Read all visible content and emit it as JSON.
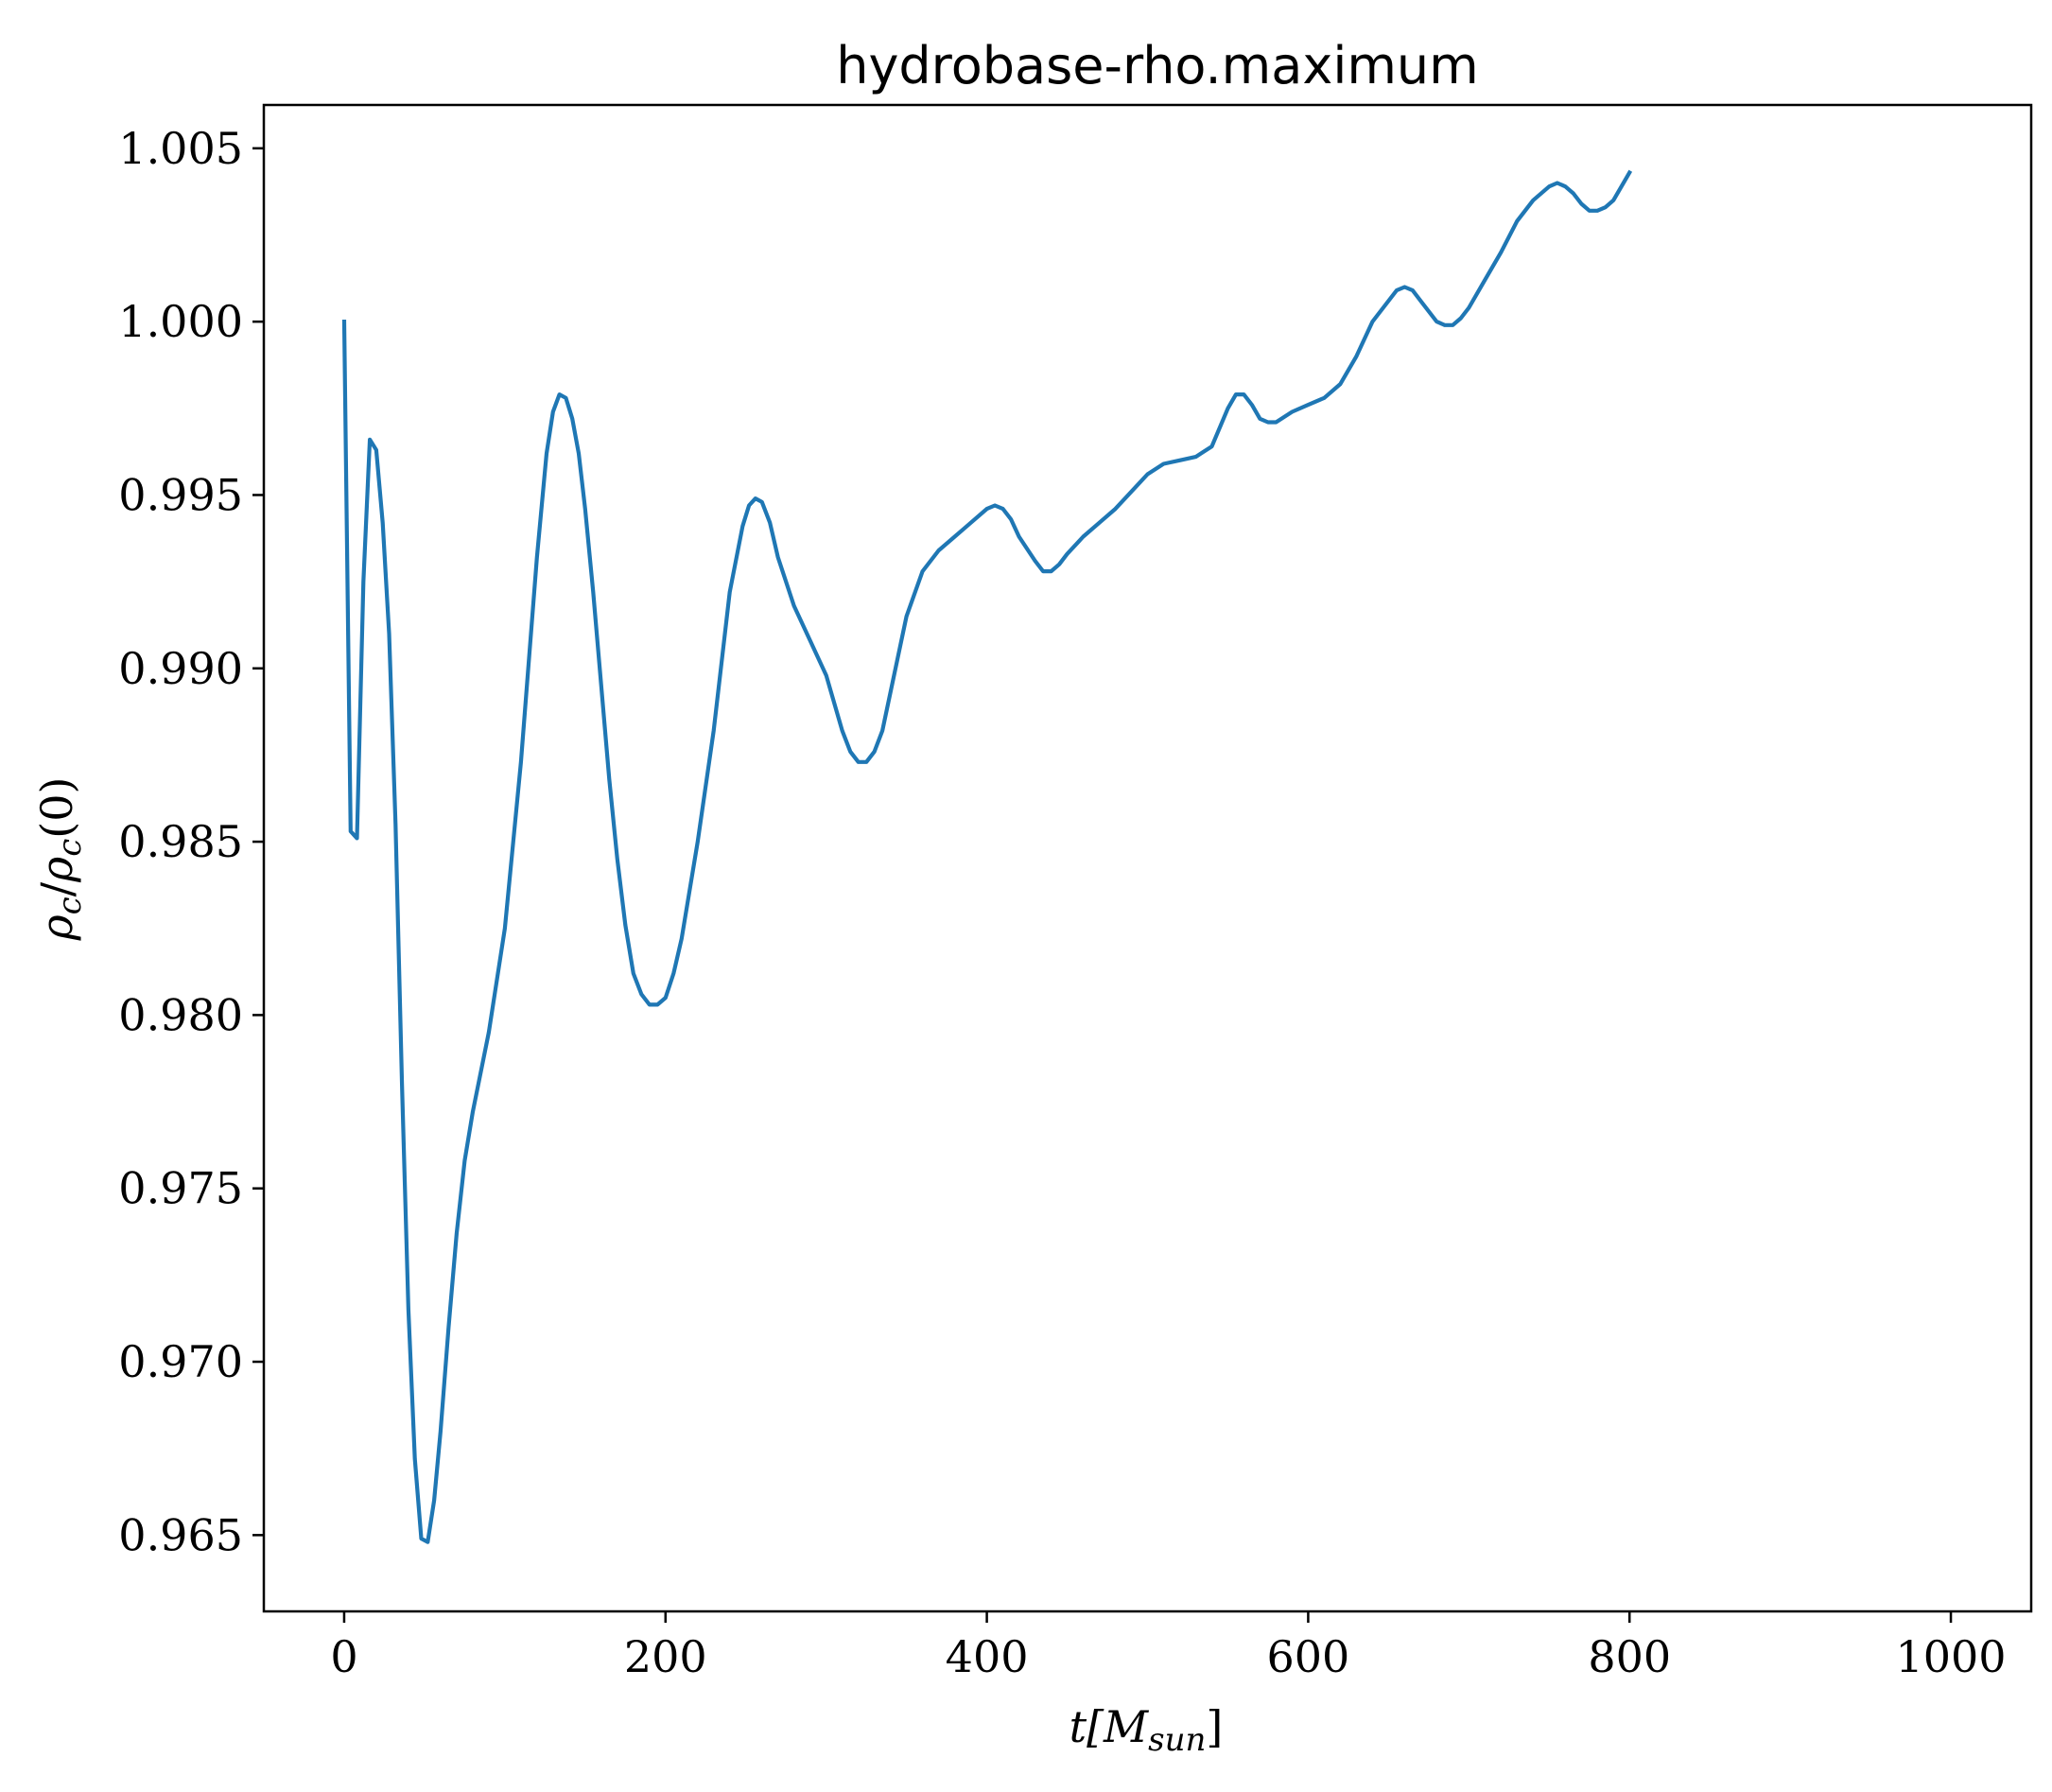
{
  "chart_data": {
    "type": "line",
    "title": "hydrobase-rho.maximum",
    "xlabel": {
      "main": "t[M",
      "sub": "sun",
      "close": "]"
    },
    "ylabel": {
      "rho1": "ρ",
      "sub1": "c",
      "slash": "/",
      "rho2": "ρ",
      "sub2": "c",
      "arg": "(0)"
    },
    "xlim": [
      -50,
      1050
    ],
    "ylim": [
      0.9628,
      1.00625
    ],
    "xticks": [
      0,
      200,
      400,
      600,
      800,
      1000
    ],
    "xtick_labels": [
      "0",
      "200",
      "400",
      "600",
      "800",
      "1000"
    ],
    "yticks": [
      0.965,
      0.97,
      0.975,
      0.98,
      0.985,
      0.99,
      0.995,
      1.0,
      1.005
    ],
    "ytick_labels": [
      "0.965",
      "0.970",
      "0.975",
      "0.980",
      "0.985",
      "0.990",
      "0.995",
      "1.000",
      "1.005"
    ],
    "grid": false,
    "series": [
      {
        "color": "#1f77b4",
        "points": [
          [
            0,
            1.0
          ],
          [
            4,
            0.9853
          ],
          [
            8,
            0.9851
          ],
          [
            12,
            0.9925
          ],
          [
            16,
            0.9966
          ],
          [
            20,
            0.9963
          ],
          [
            24,
            0.9942
          ],
          [
            28,
            0.991
          ],
          [
            32,
            0.9855
          ],
          [
            36,
            0.978
          ],
          [
            40,
            0.9715
          ],
          [
            44,
            0.9672
          ],
          [
            48,
            0.9649
          ],
          [
            52,
            0.9648
          ],
          [
            56,
            0.966
          ],
          [
            60,
            0.968
          ],
          [
            65,
            0.971
          ],
          [
            70,
            0.9737
          ],
          [
            75,
            0.9758
          ],
          [
            80,
            0.9772
          ],
          [
            90,
            0.9795
          ],
          [
            100,
            0.9825
          ],
          [
            110,
            0.9873
          ],
          [
            120,
            0.9932
          ],
          [
            126,
            0.9962
          ],
          [
            130,
            0.9974
          ],
          [
            134,
            0.9979
          ],
          [
            138,
            0.9978
          ],
          [
            142,
            0.9972
          ],
          [
            146,
            0.9962
          ],
          [
            150,
            0.9946
          ],
          [
            155,
            0.9922
          ],
          [
            160,
            0.9895
          ],
          [
            165,
            0.9868
          ],
          [
            170,
            0.9845
          ],
          [
            175,
            0.9826
          ],
          [
            180,
            0.9812
          ],
          [
            185,
            0.9806
          ],
          [
            190,
            0.9803
          ],
          [
            195,
            0.9803
          ],
          [
            200,
            0.9805
          ],
          [
            205,
            0.9812
          ],
          [
            210,
            0.9822
          ],
          [
            220,
            0.985
          ],
          [
            230,
            0.9882
          ],
          [
            240,
            0.9922
          ],
          [
            248,
            0.9941
          ],
          [
            252,
            0.9947
          ],
          [
            256,
            0.9949
          ],
          [
            260,
            0.9948
          ],
          [
            265,
            0.9942
          ],
          [
            270,
            0.9932
          ],
          [
            280,
            0.9918
          ],
          [
            290,
            0.9908
          ],
          [
            300,
            0.9898
          ],
          [
            310,
            0.9882
          ],
          [
            315,
            0.9876
          ],
          [
            320,
            0.9873
          ],
          [
            325,
            0.9873
          ],
          [
            330,
            0.9876
          ],
          [
            335,
            0.9882
          ],
          [
            340,
            0.9893
          ],
          [
            350,
            0.9915
          ],
          [
            360,
            0.9928
          ],
          [
            370,
            0.9934
          ],
          [
            380,
            0.9938
          ],
          [
            390,
            0.9942
          ],
          [
            400,
            0.9946
          ],
          [
            405,
            0.9947
          ],
          [
            410,
            0.9946
          ],
          [
            415,
            0.9943
          ],
          [
            420,
            0.9938
          ],
          [
            430,
            0.9931
          ],
          [
            435,
            0.9928
          ],
          [
            440,
            0.9928
          ],
          [
            445,
            0.993
          ],
          [
            450,
            0.9933
          ],
          [
            460,
            0.9938
          ],
          [
            470,
            0.9942
          ],
          [
            480,
            0.9946
          ],
          [
            490,
            0.9951
          ],
          [
            500,
            0.9956
          ],
          [
            510,
            0.9959
          ],
          [
            520,
            0.996
          ],
          [
            530,
            0.9961
          ],
          [
            540,
            0.9964
          ],
          [
            550,
            0.9975
          ],
          [
            555,
            0.9979
          ],
          [
            560,
            0.9979
          ],
          [
            565,
            0.9976
          ],
          [
            570,
            0.9972
          ],
          [
            575,
            0.9971
          ],
          [
            580,
            0.9971
          ],
          [
            590,
            0.9974
          ],
          [
            600,
            0.9976
          ],
          [
            610,
            0.9978
          ],
          [
            620,
            0.9982
          ],
          [
            630,
            0.999
          ],
          [
            640,
            1.0
          ],
          [
            650,
            1.0006
          ],
          [
            655,
            1.0009
          ],
          [
            660,
            1.001
          ],
          [
            665,
            1.0009
          ],
          [
            670,
            1.0006
          ],
          [
            680,
            1.0
          ],
          [
            685,
            0.9999
          ],
          [
            690,
            0.9999
          ],
          [
            695,
            1.0001
          ],
          [
            700,
            1.0004
          ],
          [
            710,
            1.0012
          ],
          [
            720,
            1.002
          ],
          [
            730,
            1.0029
          ],
          [
            740,
            1.0035
          ],
          [
            750,
            1.0039
          ],
          [
            755,
            1.004
          ],
          [
            760,
            1.0039
          ],
          [
            765,
            1.0037
          ],
          [
            770,
            1.0034
          ],
          [
            775,
            1.0032
          ],
          [
            780,
            1.0032
          ],
          [
            785,
            1.0033
          ],
          [
            790,
            1.0035
          ],
          [
            800,
            1.0043
          ]
        ]
      }
    ]
  }
}
